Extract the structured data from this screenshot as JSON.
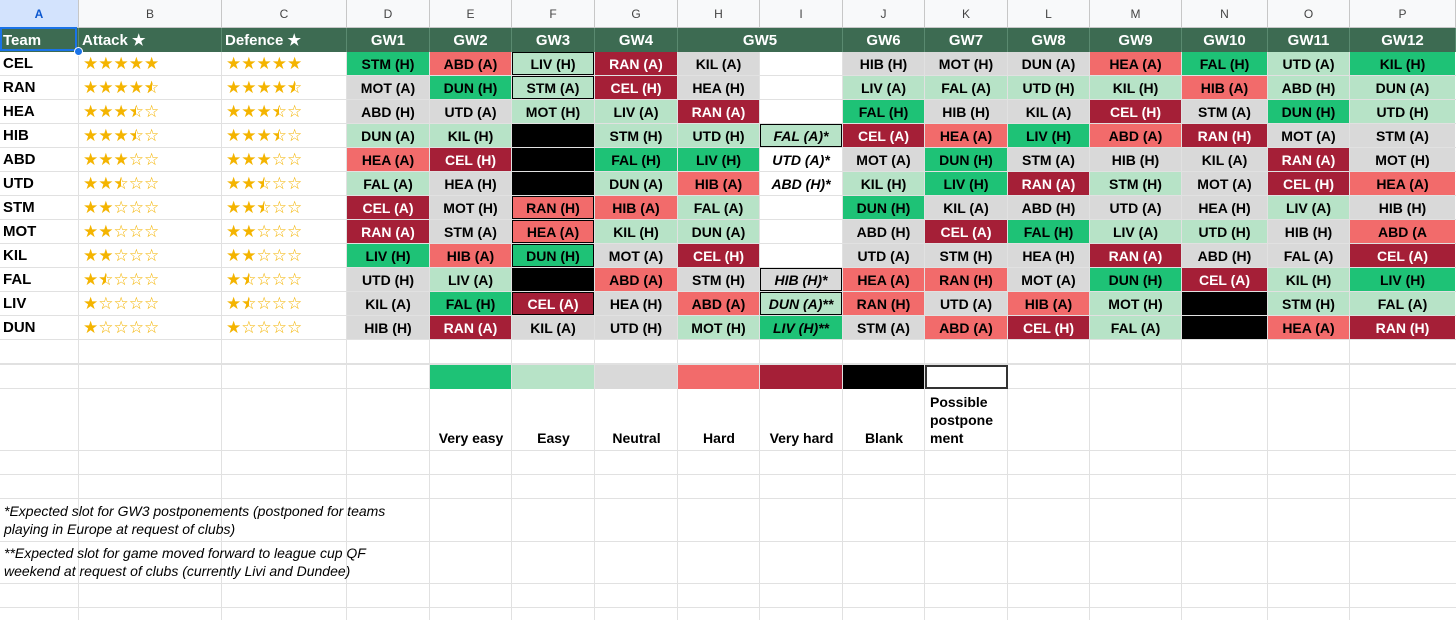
{
  "column_letters": [
    "A",
    "B",
    "C",
    "D",
    "E",
    "F",
    "G",
    "H",
    "I",
    "J",
    "K",
    "L",
    "M",
    "N",
    "O",
    "P"
  ],
  "header": [
    "Team",
    "Attack ★",
    "Defence ★",
    "GW1",
    "GW2",
    "GW3",
    "GW4",
    "GW5",
    "",
    "GW6",
    "GW7",
    "GW8",
    "GW9",
    "GW10",
    "GW11",
    "GW12"
  ],
  "colors": {
    "VE": "#1ec276",
    "E": "#b7e3c7",
    "N": "#d9d9d9",
    "H": "#f26b6b",
    "VH": "#a51f37",
    "B": "#000000",
    "W": "#ffffff"
  },
  "rows": [
    {
      "team": "CEL",
      "atk": 5,
      "def": 5,
      "cells": [
        [
          "STM (H)",
          "VE"
        ],
        [
          "ABD (A)",
          "H"
        ],
        [
          "LIV (H)",
          "E",
          "b"
        ],
        [
          "RAN (A)",
          "VH"
        ],
        [
          "KIL (A)",
          "N"
        ],
        [
          "",
          "W"
        ],
        [
          "HIB (H)",
          "N"
        ],
        [
          "MOT (H)",
          "N"
        ],
        [
          "DUN (A)",
          "N"
        ],
        [
          "HEA (A)",
          "H"
        ],
        [
          "FAL (H)",
          "VE"
        ],
        [
          "UTD (A)",
          "E"
        ],
        [
          "KIL (H)",
          "VE"
        ]
      ]
    },
    {
      "team": "RAN",
      "atk": 4.5,
      "def": 4.5,
      "cells": [
        [
          "MOT (A)",
          "N"
        ],
        [
          "DUN (H)",
          "VE"
        ],
        [
          "STM (A)",
          "E",
          "b"
        ],
        [
          "CEL (H)",
          "VH"
        ],
        [
          "HEA (H)",
          "N"
        ],
        [
          "",
          "W"
        ],
        [
          "LIV (A)",
          "E"
        ],
        [
          "FAL (A)",
          "E"
        ],
        [
          "UTD (H)",
          "E"
        ],
        [
          "KIL (H)",
          "E"
        ],
        [
          "HIB (A)",
          "H"
        ],
        [
          "ABD (H)",
          "E"
        ],
        [
          "DUN (A)",
          "E"
        ]
      ]
    },
    {
      "team": "HEA",
      "atk": 3.5,
      "def": 3.5,
      "cells": [
        [
          "ABD (H)",
          "N"
        ],
        [
          "UTD (A)",
          "N"
        ],
        [
          "MOT (H)",
          "E"
        ],
        [
          "LIV (A)",
          "E"
        ],
        [
          "RAN (A)",
          "VH"
        ],
        [
          "",
          "W"
        ],
        [
          "FAL (H)",
          "VE"
        ],
        [
          "HIB (H)",
          "N"
        ],
        [
          "KIL (A)",
          "N"
        ],
        [
          "CEL (H)",
          "VH"
        ],
        [
          "STM (A)",
          "N"
        ],
        [
          "DUN (H)",
          "VE"
        ],
        [
          "UTD (H)",
          "E"
        ]
      ]
    },
    {
      "team": "HIB",
      "atk": 3.5,
      "def": 3.5,
      "cells": [
        [
          "DUN (A)",
          "E"
        ],
        [
          "KIL (H)",
          "E"
        ],
        [
          "",
          "B"
        ],
        [
          "STM (H)",
          "E"
        ],
        [
          "UTD (H)",
          "E"
        ],
        [
          "FAL (A)*",
          "E",
          "bi"
        ],
        [
          "CEL (A)",
          "VH"
        ],
        [
          "HEA (A)",
          "H"
        ],
        [
          "LIV (H)",
          "VE"
        ],
        [
          "ABD (A)",
          "H"
        ],
        [
          "RAN (H)",
          "VH"
        ],
        [
          "MOT (A)",
          "N"
        ],
        [
          "STM (A)",
          "N"
        ]
      ]
    },
    {
      "team": "ABD",
      "atk": 3,
      "def": 3,
      "cells": [
        [
          "HEA (A)",
          "H"
        ],
        [
          "CEL (H)",
          "VH"
        ],
        [
          "",
          "B"
        ],
        [
          "FAL (H)",
          "VE"
        ],
        [
          "LIV (H)",
          "VE"
        ],
        [
          "UTD (A)*",
          "W",
          "i"
        ],
        [
          "MOT (A)",
          "N"
        ],
        [
          "DUN (H)",
          "VE"
        ],
        [
          "STM (A)",
          "N"
        ],
        [
          "HIB (H)",
          "N"
        ],
        [
          "KIL (A)",
          "N"
        ],
        [
          "RAN (A)",
          "VH"
        ],
        [
          "MOT (H)",
          "N"
        ]
      ]
    },
    {
      "team": "UTD",
      "atk": 2.5,
      "def": 2.5,
      "cells": [
        [
          "FAL (A)",
          "E"
        ],
        [
          "HEA (H)",
          "N"
        ],
        [
          "",
          "B"
        ],
        [
          "DUN (A)",
          "E"
        ],
        [
          "HIB (A)",
          "H"
        ],
        [
          "ABD (H)*",
          "W",
          "i"
        ],
        [
          "KIL (H)",
          "E"
        ],
        [
          "LIV (H)",
          "VE"
        ],
        [
          "RAN (A)",
          "VH"
        ],
        [
          "STM (H)",
          "E"
        ],
        [
          "MOT (A)",
          "N"
        ],
        [
          "CEL (H)",
          "VH"
        ],
        [
          "HEA (A)",
          "H"
        ]
      ]
    },
    {
      "team": "STM",
      "atk": 2,
      "def": 2.5,
      "cells": [
        [
          "CEL (A)",
          "VH"
        ],
        [
          "MOT (H)",
          "N"
        ],
        [
          "RAN (H)",
          "H",
          "b"
        ],
        [
          "HIB (A)",
          "H"
        ],
        [
          "FAL (A)",
          "E"
        ],
        [
          "",
          "W"
        ],
        [
          "DUN (H)",
          "VE"
        ],
        [
          "KIL (A)",
          "N"
        ],
        [
          "ABD (H)",
          "N"
        ],
        [
          "UTD (A)",
          "N"
        ],
        [
          "HEA (H)",
          "N"
        ],
        [
          "LIV (A)",
          "E"
        ],
        [
          "HIB (H)",
          "N"
        ]
      ]
    },
    {
      "team": "MOT",
      "atk": 2,
      "def": 2,
      "cells": [
        [
          "RAN (A)",
          "VH"
        ],
        [
          "STM (A)",
          "N"
        ],
        [
          "HEA (A)",
          "H",
          "b"
        ],
        [
          "KIL (H)",
          "E"
        ],
        [
          "DUN (A)",
          "E"
        ],
        [
          "",
          "W"
        ],
        [
          "ABD (H)",
          "N"
        ],
        [
          "CEL (A)",
          "VH"
        ],
        [
          "FAL (H)",
          "VE"
        ],
        [
          "LIV (A)",
          "E"
        ],
        [
          "UTD (H)",
          "E"
        ],
        [
          "HIB (H)",
          "N"
        ],
        [
          "ABD (A",
          "H"
        ]
      ]
    },
    {
      "team": "KIL",
      "atk": 2,
      "def": 2,
      "cells": [
        [
          "LIV (H)",
          "VE"
        ],
        [
          "HIB (A)",
          "H"
        ],
        [
          "DUN (H)",
          "VE",
          "b"
        ],
        [
          "MOT (A)",
          "N"
        ],
        [
          "CEL (H)",
          "VH"
        ],
        [
          "",
          "W"
        ],
        [
          "UTD (A)",
          "N"
        ],
        [
          "STM (H)",
          "N"
        ],
        [
          "HEA (H)",
          "N"
        ],
        [
          "RAN (A)",
          "VH"
        ],
        [
          "ABD (H)",
          "N"
        ],
        [
          "FAL (A)",
          "N"
        ],
        [
          "CEL (A)",
          "VH"
        ]
      ]
    },
    {
      "team": "FAL",
      "atk": 1.5,
      "def": 1.5,
      "cells": [
        [
          "UTD (H)",
          "N"
        ],
        [
          "LIV (A)",
          "E"
        ],
        [
          "",
          "B"
        ],
        [
          "ABD (A)",
          "H"
        ],
        [
          "STM (H)",
          "N"
        ],
        [
          "HIB (H)*",
          "N",
          "bi"
        ],
        [
          "HEA (A)",
          "H"
        ],
        [
          "RAN (H)",
          "H"
        ],
        [
          "MOT (A)",
          "N"
        ],
        [
          "DUN (H)",
          "VE"
        ],
        [
          "CEL (A)",
          "VH"
        ],
        [
          "KIL (H)",
          "E"
        ],
        [
          "LIV (H)",
          "VE"
        ]
      ]
    },
    {
      "team": "LIV",
      "atk": 1,
      "def": 1.5,
      "cells": [
        [
          "KIL (A)",
          "N"
        ],
        [
          "FAL (H)",
          "VE"
        ],
        [
          "CEL (A)",
          "VH",
          "b"
        ],
        [
          "HEA (H)",
          "N"
        ],
        [
          "ABD (A)",
          "H"
        ],
        [
          "DUN (A)**",
          "E",
          "bi"
        ],
        [
          "RAN (H)",
          "H"
        ],
        [
          "UTD (A)",
          "N"
        ],
        [
          "HIB (A)",
          "H"
        ],
        [
          "MOT (H)",
          "E"
        ],
        [
          "",
          "B"
        ],
        [
          "STM (H)",
          "E"
        ],
        [
          "FAL (A)",
          "E"
        ]
      ]
    },
    {
      "team": "DUN",
      "atk": 1,
      "def": 1,
      "cells": [
        [
          "HIB (H)",
          "N"
        ],
        [
          "RAN (A)",
          "VH"
        ],
        [
          "KIL (A)",
          "N"
        ],
        [
          "UTD (H)",
          "N"
        ],
        [
          "MOT (H)",
          "E"
        ],
        [
          "LIV (H)**",
          "VE",
          "i"
        ],
        [
          "STM (A)",
          "N"
        ],
        [
          "ABD (A)",
          "H"
        ],
        [
          "CEL (H)",
          "VH"
        ],
        [
          "FAL (A)",
          "E"
        ],
        [
          "",
          "B"
        ],
        [
          "HEA (A)",
          "H"
        ],
        [
          "RAN (H)",
          "VH"
        ]
      ]
    }
  ],
  "legend": [
    {
      "label": "Very easy",
      "color": "VE"
    },
    {
      "label": "Easy",
      "color": "E"
    },
    {
      "label": "Neutral",
      "color": "N"
    },
    {
      "label": "Hard",
      "color": "H"
    },
    {
      "label": "Very hard",
      "color": "VH"
    },
    {
      "label": "Blank",
      "color": "B"
    },
    {
      "label": "Possible postponement",
      "display": [
        "Possible",
        "postpone",
        "ment"
      ],
      "color": "W"
    }
  ],
  "notes": [
    [
      "*Expected slot for GW3 postponements (postponed for teams",
      "playing in Europe at request of clubs)"
    ],
    [
      "**Expected slot for game moved forward to league cup QF",
      "weekend at request of clubs (currently Livi and Dundee)"
    ]
  ]
}
